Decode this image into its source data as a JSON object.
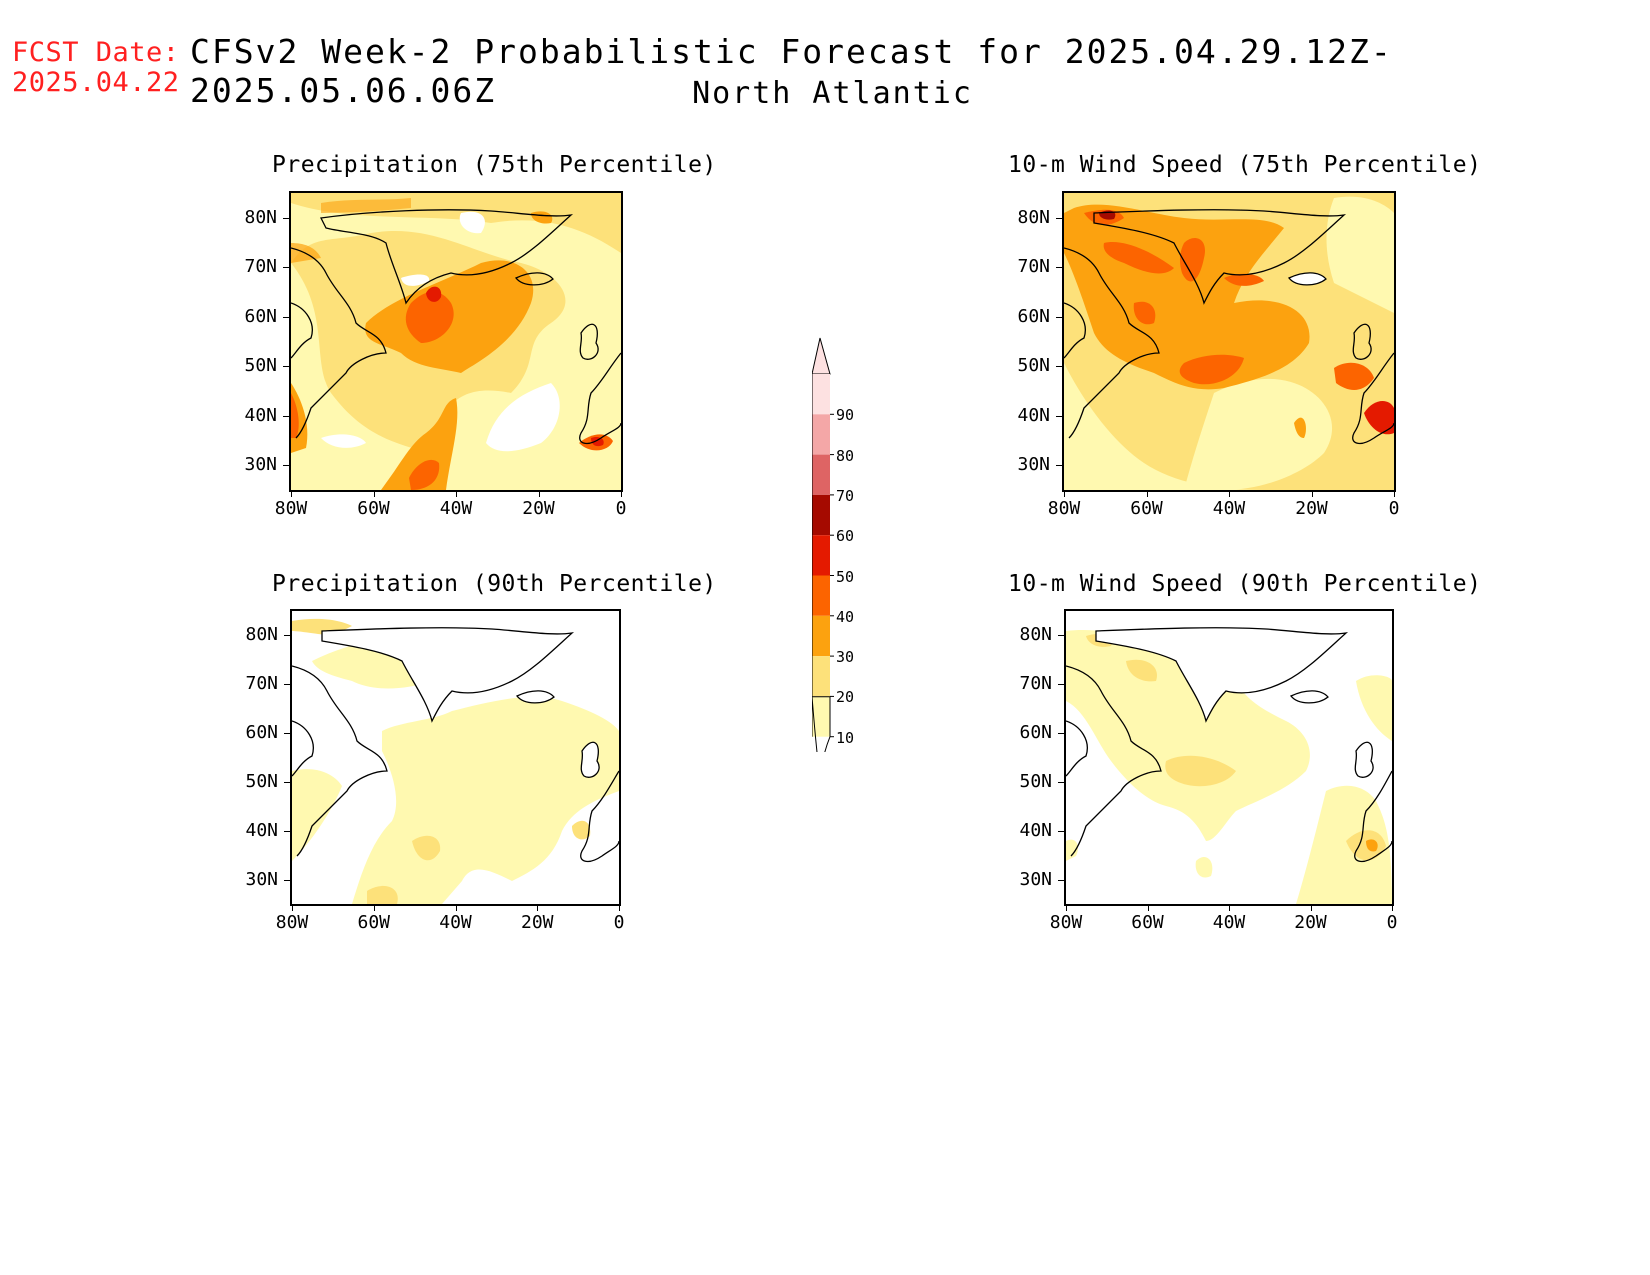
{
  "header": {
    "fcst_label": "FCST Date:",
    "fcst_date": "2025.04.22",
    "title": "CFSv2 Week-2 Probabilistic Forecast for 2025.04.29.12Z-2025.05.06.06Z",
    "region": "North Atlantic"
  },
  "axes": {
    "lat_labels": [
      "80N",
      "70N",
      "60N",
      "50N",
      "40N",
      "30N"
    ],
    "lon_labels": [
      "80W",
      "60W",
      "40W",
      "20W",
      "0"
    ],
    "lat_range": [
      25,
      85
    ],
    "lon_range": [
      -80,
      0
    ]
  },
  "panels": [
    {
      "title": "Precipitation (75th Percentile)",
      "variable": "precipitation",
      "percentile": 75
    },
    {
      "title": "10-m Wind Speed (75th Percentile)",
      "variable": "wind_speed",
      "percentile": 75
    },
    {
      "title": "Precipitation (90th Percentile)",
      "variable": "precipitation",
      "percentile": 90
    },
    {
      "title": "10-m Wind Speed (90th Percentile)",
      "variable": "wind_speed",
      "percentile": 90
    }
  ],
  "colorbar": {
    "levels": [
      "10",
      "20",
      "30",
      "40",
      "50",
      "60",
      "70",
      "80",
      "90"
    ],
    "colors": [
      "#fff9b0",
      "#fde17a",
      "#fca20f",
      "#fc6400",
      "#e41a00",
      "#a50a00",
      "#de6464",
      "#f4a7a7",
      "#fde1e1"
    ]
  }
}
